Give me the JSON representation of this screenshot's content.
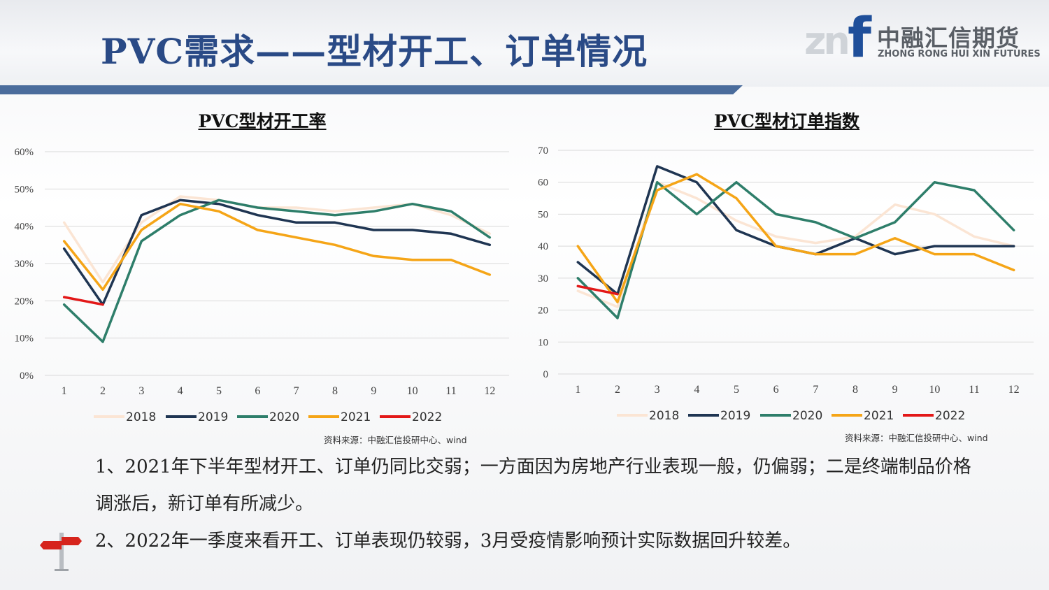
{
  "header": {
    "title": "PVC需求——型材开工、订单情况",
    "logo": {
      "mark_gray": "zn",
      "mark_blue": "f",
      "cn": "中融汇信期货",
      "en": "ZHONG RONG HUI XIN FUTURES"
    }
  },
  "colors": {
    "2018": "#fbe5d4",
    "2019": "#1f3552",
    "2020": "#2e7e6a",
    "2021": "#f5a517",
    "2022": "#e31818",
    "title": "#2a4a86",
    "bar": "#4a6c9c"
  },
  "chart_data": [
    {
      "type": "line",
      "title": "PVC型材开工率",
      "categories": [
        "1",
        "2",
        "3",
        "4",
        "5",
        "6",
        "7",
        "8",
        "9",
        "10",
        "11",
        "12"
      ],
      "y_ticks": [
        "0%",
        "10%",
        "20%",
        "30%",
        "40%",
        "50%",
        "60%"
      ],
      "ylim": [
        0,
        60
      ],
      "grid": true,
      "legend_position": "bottom",
      "series": [
        {
          "name": "2018",
          "values": [
            41,
            25,
            41,
            48,
            47,
            45,
            45,
            44,
            45,
            46,
            43,
            38
          ]
        },
        {
          "name": "2019",
          "values": [
            34,
            19,
            43,
            47,
            46,
            43,
            41,
            41,
            39,
            39,
            38,
            35
          ]
        },
        {
          "name": "2020",
          "values": [
            19,
            9,
            36,
            43,
            47,
            45,
            44,
            43,
            44,
            46,
            44,
            37
          ]
        },
        {
          "name": "2021",
          "values": [
            36,
            23,
            39,
            46,
            44,
            39,
            37,
            35,
            32,
            31,
            31,
            27
          ]
        },
        {
          "name": "2022",
          "values": [
            21,
            19,
            null,
            null,
            null,
            null,
            null,
            null,
            null,
            null,
            null,
            null
          ]
        }
      ],
      "source": "资料来源：中融汇信投研中心、wind"
    },
    {
      "type": "line",
      "title": "PVC型材订单指数",
      "categories": [
        "1",
        "2",
        "3",
        "4",
        "5",
        "6",
        "7",
        "8",
        "9",
        "10",
        "11",
        "12"
      ],
      "y_ticks": [
        "0",
        "10",
        "20",
        "30",
        "40",
        "50",
        "60",
        "70"
      ],
      "ylim": [
        0,
        70
      ],
      "grid": true,
      "legend_position": "bottom",
      "series": [
        {
          "name": "2018",
          "values": [
            26,
            21,
            60,
            55,
            48,
            43,
            41,
            43,
            53,
            50,
            43,
            40
          ]
        },
        {
          "name": "2019",
          "values": [
            35,
            25,
            65,
            60,
            45,
            40,
            37.5,
            42.5,
            37.5,
            40,
            40,
            40
          ]
        },
        {
          "name": "2020",
          "values": [
            30,
            17.5,
            60,
            50,
            60,
            50,
            47.5,
            42.5,
            47.5,
            60,
            57.5,
            45
          ]
        },
        {
          "name": "2021",
          "values": [
            40,
            22.5,
            57.5,
            62.5,
            55,
            40,
            37.5,
            37.5,
            42.5,
            37.5,
            37.5,
            32.5
          ]
        },
        {
          "name": "2022",
          "values": [
            27.5,
            25,
            null,
            null,
            null,
            null,
            null,
            null,
            null,
            null,
            null,
            null
          ]
        }
      ],
      "source": "资料来源：中融汇信投研中心、wind"
    }
  ],
  "notes": [
    "1、2021年下半年型材开工、订单仍同比交弱；一方面因为房地产行业表现一般，仍偏弱；二是终端制品价格调涨后，新订单有所减少。",
    "2、2022年一季度来看开工、订单表现仍较弱，3月受疫情影响预计实际数据回升较差。"
  ]
}
